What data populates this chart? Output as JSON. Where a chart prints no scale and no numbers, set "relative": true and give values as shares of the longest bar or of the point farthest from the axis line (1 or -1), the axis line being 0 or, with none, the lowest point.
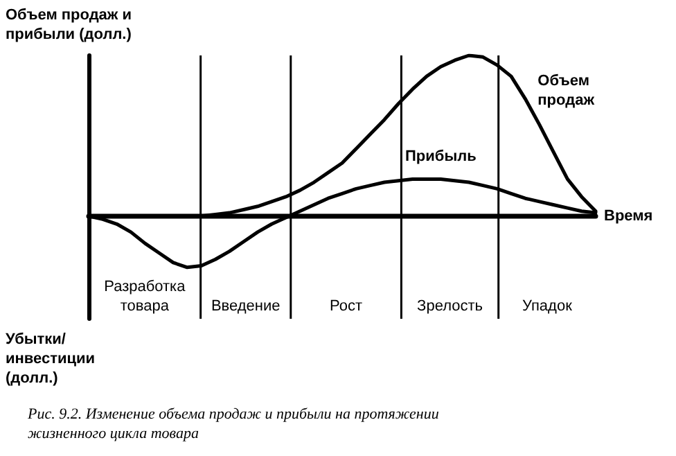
{
  "chart_data": {
    "type": "line",
    "relative": true,
    "ylabel": "Объем продаж и прибыли (долл.)",
    "xlabel": "Время",
    "categories": [
      null,
      null,
      null,
      null,
      null,
      null,
      null,
      null,
      null,
      null,
      null,
      null,
      null,
      null,
      null,
      null,
      null,
      null,
      null,
      null,
      null,
      null,
      null,
      null,
      null,
      null,
      null,
      null,
      null,
      null,
      null,
      null,
      null,
      null,
      null,
      null,
      null
    ],
    "series": [
      {
        "name": "Объем продаж",
        "color": "#000000",
        "values": [
          null,
          null,
          null,
          null,
          null,
          null,
          null,
          null,
          0,
          0.01,
          0.02,
          0.04,
          0.06,
          0.09,
          0.12,
          0.16,
          0.21,
          0.27,
          0.33,
          0.42,
          0.51,
          0.6,
          0.7,
          0.79,
          0.87,
          0.93,
          0.97,
          1,
          0.99,
          0.94,
          0.87,
          0.73,
          0.57,
          0.4,
          0.23,
          0.12,
          0.03
        ]
      },
      {
        "name": "Прибыль",
        "color": "#000000",
        "values": [
          0,
          -0.02,
          -0.05,
          -0.1,
          -0.17,
          -0.23,
          -0.29,
          -0.32,
          -0.31,
          -0.27,
          -0.22,
          -0.16,
          -0.1,
          -0.05,
          -0.01,
          0.03,
          0.07,
          0.11,
          0.14,
          0.17,
          0.19,
          0.21,
          0.22,
          0.23,
          0.23,
          0.23,
          0.22,
          0.21,
          0.19,
          0.17,
          0.14,
          0.11,
          0.09,
          0.07,
          0.05,
          0.03,
          0.02
        ]
      }
    ],
    "annotations": [
      "Разработка товара",
      "Введение",
      "Рост",
      "Зрелость",
      "Упадок",
      "Убытки/ инвестиции (долл.)",
      "Рис. 9.2. Изменение объема продаж и прибыли на протяжении жизненного цикла товара"
    ],
    "marker": "none",
    "line_style": "solid",
    "legend": false,
    "grid": false
  }
}
